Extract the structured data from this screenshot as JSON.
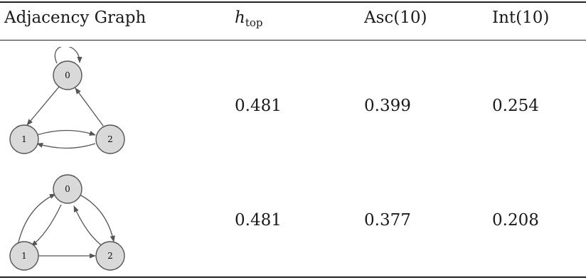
{
  "table": {
    "headers": {
      "col1": "Adjacency Graph",
      "col2_main": "h",
      "col2_sub": "top",
      "col3": "Asc(10)",
      "col4": "Int(10)"
    },
    "rows": [
      {
        "nodes": [
          "0",
          "1",
          "2"
        ],
        "h_top": "0.481",
        "asc": "0.399",
        "int": "0.254"
      },
      {
        "nodes": [
          "0",
          "1",
          "2"
        ],
        "h_top": "0.481",
        "asc": "0.377",
        "int": "0.208"
      }
    ]
  }
}
